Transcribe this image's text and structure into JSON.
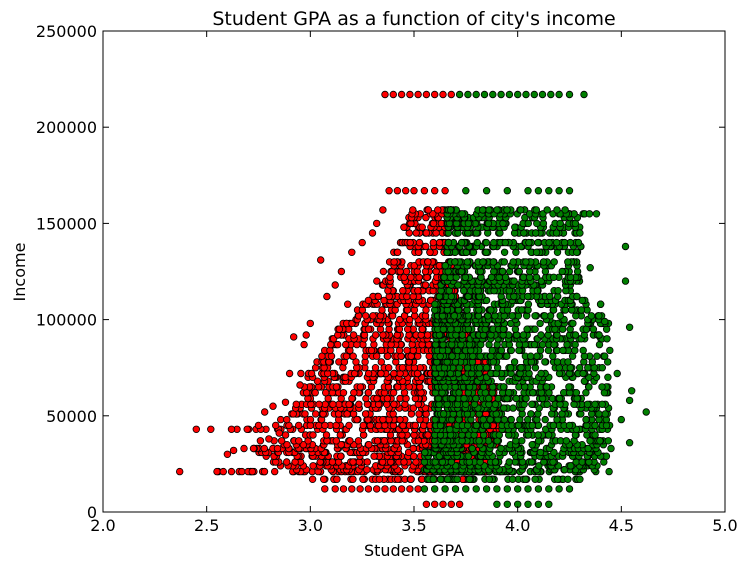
{
  "chart_data": {
    "type": "scatter",
    "title": "Student GPA as a function of city's income",
    "xlabel": "Student GPA",
    "ylabel": "Income",
    "xlim": [
      2.0,
      5.0
    ],
    "ylim": [
      0,
      250000
    ],
    "xticks": [
      "2.0",
      "2.5",
      "3.0",
      "3.5",
      "4.0",
      "4.5",
      "5.0"
    ],
    "yticks": [
      "0",
      "50000",
      "100000",
      "150000",
      "200000",
      "250000"
    ],
    "grid": false,
    "colors": {
      "low": "#ff0000",
      "high": "#007f00",
      "edge": "#000000"
    },
    "income_levels": [
      4000,
      12000,
      17000,
      21000,
      22000,
      24000,
      26000,
      29000,
      31000,
      33000,
      35000,
      37000,
      40000,
      43000,
      45000,
      48000,
      51000,
      54000,
      56000,
      59000,
      62000,
      65000,
      68000,
      70000,
      72000,
      75000,
      78000,
      81000,
      84000,
      87000,
      90000,
      92000,
      95000,
      98000,
      100000,
      102000,
      105000,
      108000,
      110000,
      112000,
      115000,
      118000,
      120000,
      122000,
      125000,
      128000,
      130000,
      135000,
      138000,
      140000,
      145000,
      148000,
      150000,
      153000,
      155000,
      157000,
      167000,
      217000
    ],
    "series": [
      {
        "color_key": "low",
        "points": [
          [
            2.37,
            21000
          ],
          [
            2.45,
            43000
          ],
          [
            2.52,
            43000
          ],
          [
            2.55,
            21000
          ],
          [
            2.58,
            21000
          ],
          [
            2.62,
            21000
          ],
          [
            2.6,
            30000
          ],
          [
            2.63,
            32000
          ],
          [
            2.67,
            21000
          ],
          [
            2.7,
            21000
          ],
          [
            2.72,
            21000
          ],
          [
            2.68,
            33000
          ],
          [
            2.75,
            45000
          ],
          [
            2.78,
            52000
          ],
          [
            2.8,
            38000
          ],
          [
            2.82,
            55000
          ],
          [
            2.85,
            41000
          ],
          [
            2.88,
            57000
          ],
          [
            2.9,
            72000
          ],
          [
            2.92,
            91000
          ],
          [
            2.95,
            66000
          ],
          [
            2.97,
            87000
          ],
          [
            2.98,
            92000
          ],
          [
            3.0,
            98000
          ],
          [
            3.05,
            131000
          ],
          [
            3.08,
            112000
          ],
          [
            3.12,
            118000
          ],
          [
            3.15,
            125000
          ],
          [
            3.18,
            108000
          ],
          [
            3.2,
            135000
          ],
          [
            3.25,
            140000
          ],
          [
            3.28,
            110000
          ],
          [
            3.3,
            145000
          ],
          [
            3.32,
            150000
          ],
          [
            3.35,
            157000
          ],
          [
            3.38,
            167000
          ],
          [
            3.42,
            167000
          ],
          [
            3.46,
            167000
          ],
          [
            3.5,
            167000
          ],
          [
            3.55,
            167000
          ],
          [
            3.6,
            167000
          ],
          [
            3.65,
            167000
          ],
          [
            3.36,
            217000
          ],
          [
            3.4,
            217000
          ],
          [
            3.44,
            217000
          ],
          [
            3.48,
            217000
          ],
          [
            3.52,
            217000
          ],
          [
            3.56,
            217000
          ],
          [
            3.6,
            217000
          ],
          [
            3.64,
            217000
          ],
          [
            3.68,
            217000
          ],
          [
            3.07,
            12000
          ],
          [
            3.12,
            12000
          ],
          [
            3.16,
            12000
          ],
          [
            3.2,
            12000
          ],
          [
            3.24,
            12000
          ],
          [
            3.28,
            12000
          ],
          [
            3.32,
            12000
          ],
          [
            3.36,
            12000
          ],
          [
            3.4,
            12000
          ],
          [
            3.44,
            12000
          ],
          [
            3.48,
            12000
          ],
          [
            3.52,
            12000
          ],
          [
            3.56,
            4000
          ],
          [
            3.6,
            4000
          ],
          [
            3.64,
            4000
          ],
          [
            3.68,
            4000
          ],
          [
            3.72,
            4000
          ]
        ],
        "bands": [
          [
            17000,
            2.95,
            3.75
          ],
          [
            21000,
            2.55,
            3.85
          ],
          [
            22000,
            2.9,
            3.8
          ],
          [
            24000,
            2.85,
            3.8
          ],
          [
            26000,
            2.8,
            3.85
          ],
          [
            29000,
            2.78,
            3.85
          ],
          [
            31000,
            2.75,
            3.85
          ],
          [
            33000,
            2.72,
            3.85
          ],
          [
            35000,
            2.8,
            3.9
          ],
          [
            37000,
            2.75,
            3.9
          ],
          [
            40000,
            2.8,
            3.9
          ],
          [
            43000,
            2.6,
            3.95
          ],
          [
            45000,
            2.82,
            3.9
          ],
          [
            48000,
            2.85,
            3.9
          ],
          [
            51000,
            2.88,
            3.9
          ],
          [
            54000,
            2.9,
            3.9
          ],
          [
            56000,
            2.92,
            3.9
          ],
          [
            59000,
            2.95,
            3.9
          ],
          [
            62000,
            2.95,
            3.9
          ],
          [
            65000,
            2.97,
            3.9
          ],
          [
            68000,
            3.0,
            3.85
          ],
          [
            70000,
            2.98,
            3.85
          ],
          [
            72000,
            2.95,
            3.85
          ],
          [
            75000,
            3.0,
            3.85
          ],
          [
            78000,
            3.02,
            3.85
          ],
          [
            81000,
            3.05,
            3.85
          ],
          [
            84000,
            3.05,
            3.8
          ],
          [
            87000,
            3.07,
            3.8
          ],
          [
            90000,
            3.1,
            3.8
          ],
          [
            92000,
            3.1,
            3.8
          ],
          [
            95000,
            3.12,
            3.75
          ],
          [
            98000,
            3.15,
            3.75
          ],
          [
            100000,
            3.15,
            3.75
          ],
          [
            102000,
            3.2,
            3.75
          ],
          [
            105000,
            3.22,
            3.72
          ],
          [
            108000,
            3.25,
            3.72
          ],
          [
            110000,
            3.28,
            3.7
          ],
          [
            112000,
            3.3,
            3.7
          ],
          [
            115000,
            3.3,
            3.7
          ],
          [
            118000,
            3.32,
            3.7
          ],
          [
            120000,
            3.32,
            3.68
          ],
          [
            122000,
            3.35,
            3.68
          ],
          [
            125000,
            3.35,
            3.68
          ],
          [
            128000,
            3.38,
            3.68
          ],
          [
            130000,
            3.38,
            3.68
          ],
          [
            135000,
            3.4,
            3.66
          ],
          [
            138000,
            3.42,
            3.66
          ],
          [
            140000,
            3.42,
            3.66
          ],
          [
            145000,
            3.45,
            3.66
          ],
          [
            148000,
            3.45,
            3.65
          ],
          [
            150000,
            3.45,
            3.65
          ],
          [
            153000,
            3.47,
            3.65
          ],
          [
            155000,
            3.48,
            3.65
          ],
          [
            157000,
            3.48,
            3.65
          ]
        ]
      },
      {
        "color_key": "high",
        "points": [
          [
            4.62,
            52000
          ],
          [
            4.55,
            63000
          ],
          [
            4.54,
            58000
          ],
          [
            4.54,
            96000
          ],
          [
            4.54,
            36000
          ],
          [
            4.52,
            120000
          ],
          [
            4.52,
            138000
          ],
          [
            4.5,
            48000
          ],
          [
            4.48,
            72000
          ],
          [
            4.45,
            33000
          ],
          [
            4.42,
            99000
          ],
          [
            4.4,
            108000
          ],
          [
            4.38,
            155000
          ],
          [
            4.35,
            127000
          ],
          [
            4.3,
            17000
          ],
          [
            4.3,
            145000
          ],
          [
            4.25,
            167000
          ],
          [
            4.2,
            167000
          ],
          [
            4.15,
            167000
          ],
          [
            4.1,
            167000
          ],
          [
            4.05,
            167000
          ],
          [
            3.95,
            167000
          ],
          [
            3.85,
            167000
          ],
          [
            3.75,
            167000
          ],
          [
            3.72,
            217000
          ],
          [
            3.76,
            217000
          ],
          [
            3.8,
            217000
          ],
          [
            3.84,
            217000
          ],
          [
            3.88,
            217000
          ],
          [
            3.92,
            217000
          ],
          [
            3.96,
            217000
          ],
          [
            4.0,
            217000
          ],
          [
            4.04,
            217000
          ],
          [
            4.08,
            217000
          ],
          [
            4.12,
            217000
          ],
          [
            4.16,
            217000
          ],
          [
            4.2,
            217000
          ],
          [
            4.25,
            217000
          ],
          [
            4.32,
            217000
          ],
          [
            3.55,
            12000
          ],
          [
            3.6,
            12000
          ],
          [
            3.65,
            12000
          ],
          [
            3.7,
            12000
          ],
          [
            3.75,
            12000
          ],
          [
            3.8,
            12000
          ],
          [
            3.85,
            12000
          ],
          [
            3.9,
            12000
          ],
          [
            3.95,
            12000
          ],
          [
            4.0,
            12000
          ],
          [
            4.05,
            12000
          ],
          [
            4.1,
            12000
          ],
          [
            4.15,
            12000
          ],
          [
            4.2,
            12000
          ],
          [
            4.25,
            12000
          ],
          [
            3.9,
            4000
          ],
          [
            3.95,
            4000
          ],
          [
            4.0,
            4000
          ],
          [
            4.05,
            4000
          ],
          [
            4.1,
            4000
          ],
          [
            4.15,
            4000
          ]
        ],
        "bands": [
          [
            17000,
            3.55,
            4.3
          ],
          [
            21000,
            3.6,
            4.45
          ],
          [
            22000,
            3.55,
            4.4
          ],
          [
            24000,
            3.55,
            4.4
          ],
          [
            26000,
            3.55,
            4.45
          ],
          [
            29000,
            3.55,
            4.45
          ],
          [
            31000,
            3.55,
            4.4
          ],
          [
            33000,
            3.6,
            4.45
          ],
          [
            35000,
            3.6,
            4.45
          ],
          [
            37000,
            3.6,
            4.45
          ],
          [
            40000,
            3.6,
            4.45
          ],
          [
            43000,
            3.6,
            4.45
          ],
          [
            45000,
            3.6,
            4.45
          ],
          [
            48000,
            3.6,
            4.45
          ],
          [
            51000,
            3.6,
            4.45
          ],
          [
            54000,
            3.6,
            4.45
          ],
          [
            56000,
            3.6,
            4.45
          ],
          [
            59000,
            3.6,
            4.45
          ],
          [
            62000,
            3.6,
            4.45
          ],
          [
            65000,
            3.6,
            4.45
          ],
          [
            68000,
            3.6,
            4.45
          ],
          [
            70000,
            3.6,
            4.45
          ],
          [
            72000,
            3.6,
            4.45
          ],
          [
            75000,
            3.6,
            4.45
          ],
          [
            78000,
            3.6,
            4.45
          ],
          [
            81000,
            3.6,
            4.45
          ],
          [
            84000,
            3.6,
            4.45
          ],
          [
            87000,
            3.6,
            4.45
          ],
          [
            90000,
            3.6,
            4.45
          ],
          [
            92000,
            3.6,
            4.45
          ],
          [
            95000,
            3.6,
            4.45
          ],
          [
            98000,
            3.6,
            4.45
          ],
          [
            100000,
            3.6,
            4.42
          ],
          [
            102000,
            3.6,
            4.42
          ],
          [
            105000,
            3.6,
            4.4
          ],
          [
            108000,
            3.6,
            4.4
          ],
          [
            110000,
            3.62,
            4.35
          ],
          [
            112000,
            3.62,
            4.35
          ],
          [
            115000,
            3.63,
            4.3
          ],
          [
            118000,
            3.63,
            4.3
          ],
          [
            120000,
            3.64,
            4.3
          ],
          [
            122000,
            3.64,
            4.3
          ],
          [
            125000,
            3.65,
            4.3
          ],
          [
            128000,
            3.65,
            4.3
          ],
          [
            130000,
            3.66,
            4.3
          ],
          [
            135000,
            3.66,
            4.3
          ],
          [
            138000,
            3.66,
            4.35
          ],
          [
            140000,
            3.66,
            4.3
          ],
          [
            145000,
            3.66,
            4.3
          ],
          [
            148000,
            3.66,
            4.3
          ],
          [
            150000,
            3.66,
            4.3
          ],
          [
            153000,
            3.66,
            4.3
          ],
          [
            155000,
            3.66,
            4.35
          ],
          [
            157000,
            3.66,
            4.25
          ]
        ]
      }
    ]
  }
}
